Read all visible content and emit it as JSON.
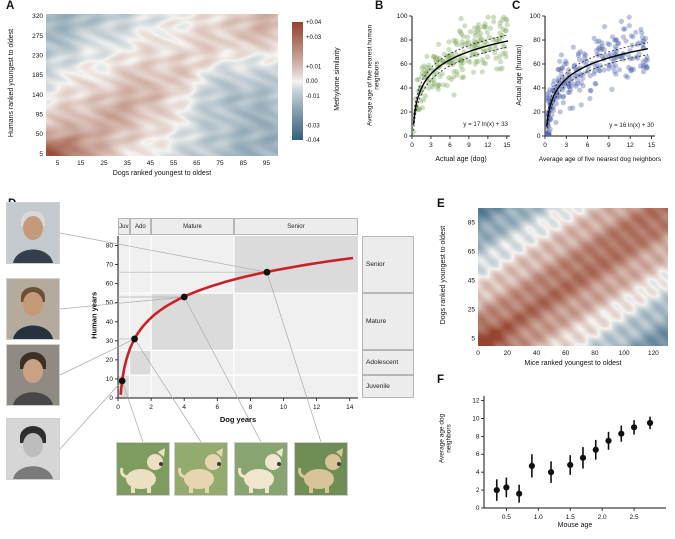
{
  "panel_letters": {
    "A": "A",
    "B": "B",
    "C": "C",
    "D": "D",
    "E": "E",
    "F": "F"
  },
  "chart_data": [
    {
      "id": "A",
      "type": "heatmap",
      "xlabel": "Dogs ranked youngest to oldest",
      "ylabel": "Humans ranked youngest to oldest",
      "x_ticks": [
        5,
        15,
        25,
        35,
        45,
        55,
        65,
        75,
        85,
        95
      ],
      "y_ticks": [
        5,
        50,
        95,
        140,
        185,
        230,
        275,
        320
      ],
      "x_range": [
        0,
        100
      ],
      "y_range": [
        0,
        325
      ],
      "colorbar": {
        "label": "Methylome similarity",
        "tick_labels": [
          "+0.04",
          "+0.03",
          "+0.01",
          "0.00",
          "-0.01",
          "-0.03",
          "-0.04"
        ],
        "vmin": -0.04,
        "vmax": 0.04
      },
      "palette": {
        "negative": "#33617f",
        "zero": "#f7f6f3",
        "positive": "#96452f"
      },
      "pattern": "similarity is high (red) where dog and human age ranks match, low (blue) where they mismatch; strongest red at the youngest-youngest corner"
    },
    {
      "id": "B",
      "type": "scatter",
      "xlabel": "Actual age (dog)",
      "ylabel": "Average age of five nearest human neighbors",
      "x_ticks": [
        0,
        3,
        6,
        9,
        12,
        15
      ],
      "y_ticks": [
        0,
        20,
        40,
        60,
        80,
        100
      ],
      "xlim": [
        0,
        15.5
      ],
      "ylim": [
        0,
        100
      ],
      "fit_label": "y = 17 ln(x) + 33",
      "fit": {
        "a": 17,
        "b": 33
      },
      "point_color": "#7fa85c",
      "n_points": 220,
      "noise_sd": 11,
      "x_min": 0.25,
      "x_max": 15.2,
      "x_pow": 1.15,
      "seed": 7
    },
    {
      "id": "C",
      "type": "scatter",
      "xlabel": "Average age of five nearest dog neighbors",
      "ylabel": "Actual age (human)",
      "x_ticks": [
        0,
        3,
        6,
        9,
        12,
        15
      ],
      "y_ticks": [
        0,
        20,
        40,
        60,
        80,
        100
      ],
      "xlim": [
        0,
        15.5
      ],
      "ylim": [
        0,
        100
      ],
      "fit_label": "y = 16 ln(x) + 30",
      "fit": {
        "a": 16,
        "b": 30
      },
      "point_color": "#4f63ae",
      "n_points": 260,
      "noise_sd": 11,
      "x_min": 0.25,
      "x_max": 14.5,
      "x_pow": 1.5,
      "seed": 13
    },
    {
      "id": "D",
      "type": "line",
      "xlabel": "Dog years",
      "ylabel": "Human years",
      "x_ticks": [
        0,
        2,
        4,
        6,
        8,
        10,
        12,
        14
      ],
      "y_ticks": [
        0,
        10,
        20,
        30,
        40,
        50,
        60,
        70,
        80
      ],
      "xlim": [
        0,
        14.5
      ],
      "ylim": [
        0,
        85
      ],
      "curve": {
        "formula": "human_years = 16 ln(dog_years) + 31",
        "a": 16,
        "b": 31,
        "x_start": 0.16,
        "x_end": 14.2,
        "color": "#cb2026"
      },
      "markers": [
        {
          "x": 0.25,
          "y": 9
        },
        {
          "x": 1,
          "y": 31
        },
        {
          "x": 4,
          "y": 53
        },
        {
          "x": 9,
          "y": 66
        }
      ],
      "stage_columns": [
        {
          "label": "Juv",
          "x0": 0,
          "x1": 0.7
        },
        {
          "label": "Ado",
          "x0": 0.7,
          "x1": 2
        },
        {
          "label": "Mature",
          "x0": 2,
          "x1": 7
        },
        {
          "label": "Senior",
          "x0": 7,
          "x1": 14.5
        }
      ],
      "stage_rows": [
        {
          "label": "Juvenile",
          "y0": 0,
          "y1": 12
        },
        {
          "label": "Adolescent",
          "y0": 12,
          "y1": 25
        },
        {
          "label": "Mature",
          "y0": 25,
          "y1": 55
        },
        {
          "label": "Senior",
          "y0": 55,
          "y1": 85
        }
      ],
      "photos": {
        "left": "human portraits at four life stages (oldest at top)",
        "bottom": "dog photos at four life stages (youngest at left)"
      }
    },
    {
      "id": "E",
      "type": "heatmap",
      "xlabel": "Mice ranked youngest to oldest",
      "ylabel": "Dogs ranked youngest to oldest",
      "x_ticks": [
        0,
        20,
        40,
        60,
        80,
        100,
        120
      ],
      "y_ticks": [
        5,
        25,
        45,
        65,
        85
      ],
      "x_range": [
        0,
        130
      ],
      "y_range": [
        0,
        95
      ],
      "palette": {
        "negative": "#33617f",
        "zero": "#f7f6f3",
        "positive": "#96452f"
      },
      "pattern": "similarity is high (red) where dog and mouse age ranks match, low (blue) where they mismatch"
    },
    {
      "id": "F",
      "type": "scatter-error",
      "xlabel": "Mouse age",
      "ylabel": "Average age dog neighbors",
      "x_ticks": [
        "0.5",
        "1.0",
        "1.5",
        "2.0",
        "2.5"
      ],
      "y_ticks": [
        0,
        2,
        4,
        6,
        8,
        10,
        12
      ],
      "xlim": [
        0.15,
        3.0
      ],
      "ylim": [
        0,
        12.5
      ],
      "x": [
        0.35,
        0.5,
        0.7,
        0.9,
        1.2,
        1.5,
        1.7,
        1.9,
        2.1,
        2.3,
        2.5,
        2.75
      ],
      "y": [
        2.0,
        2.3,
        1.6,
        4.7,
        4.0,
        4.8,
        5.6,
        6.5,
        7.5,
        8.3,
        9.0,
        9.5
      ],
      "err": [
        1.2,
        1.1,
        1.0,
        1.3,
        1.2,
        1.1,
        1.2,
        1.1,
        1.0,
        0.9,
        0.8,
        0.7
      ]
    }
  ]
}
